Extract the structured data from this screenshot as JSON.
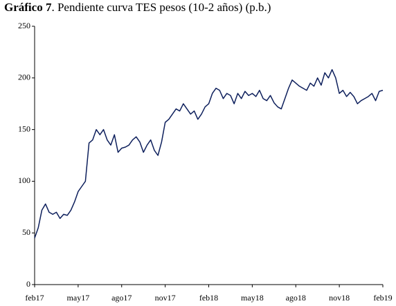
{
  "chart_data": {
    "type": "line",
    "title_prefix": "Gráfico 7",
    "title": ". Pendiente curva TES pesos (10-2 años) (p.b.)",
    "categories": [
      "feb17",
      null,
      null,
      null,
      null,
      null,
      null,
      null,
      null,
      null,
      null,
      null,
      "may17",
      null,
      null,
      null,
      null,
      null,
      null,
      null,
      null,
      null,
      null,
      null,
      "ago17",
      null,
      null,
      null,
      null,
      null,
      null,
      null,
      null,
      null,
      null,
      null,
      "nov17",
      null,
      null,
      null,
      null,
      null,
      null,
      null,
      null,
      null,
      null,
      null,
      "feb18",
      null,
      null,
      null,
      null,
      null,
      null,
      null,
      null,
      null,
      null,
      null,
      "may18",
      null,
      null,
      null,
      null,
      null,
      null,
      null,
      null,
      null,
      null,
      null,
      "ago18",
      null,
      null,
      null,
      null,
      null,
      null,
      null,
      null,
      null,
      null,
      null,
      "nov18",
      null,
      null,
      null,
      null,
      null,
      null,
      null,
      null,
      null,
      null,
      null,
      "feb19"
    ],
    "series": [
      {
        "color": "#0d1f5c",
        "values": [
          45,
          55,
          72,
          78,
          70,
          68,
          70,
          64,
          68,
          67,
          72,
          80,
          90,
          95,
          100,
          137,
          140,
          150,
          145,
          150,
          140,
          135,
          145,
          128,
          132,
          133,
          135,
          140,
          143,
          138,
          128,
          135,
          140,
          130,
          125,
          138,
          157,
          160,
          165,
          170,
          168,
          175,
          170,
          165,
          168,
          160,
          165,
          172,
          175,
          185,
          190,
          188,
          180,
          185,
          183,
          175,
          185,
          180,
          187,
          183,
          185,
          182,
          188,
          180,
          178,
          183,
          176,
          172,
          170,
          180,
          190,
          198,
          195,
          192,
          190,
          188,
          195,
          192,
          200,
          193,
          205,
          200,
          208,
          200,
          185,
          188,
          182,
          186,
          182,
          175,
          178,
          180,
          182,
          185,
          178,
          187,
          188
        ]
      }
    ],
    "ylim": [
      0,
      250
    ],
    "yticks": [
      0,
      50,
      100,
      150,
      200,
      250
    ],
    "grid": false
  }
}
